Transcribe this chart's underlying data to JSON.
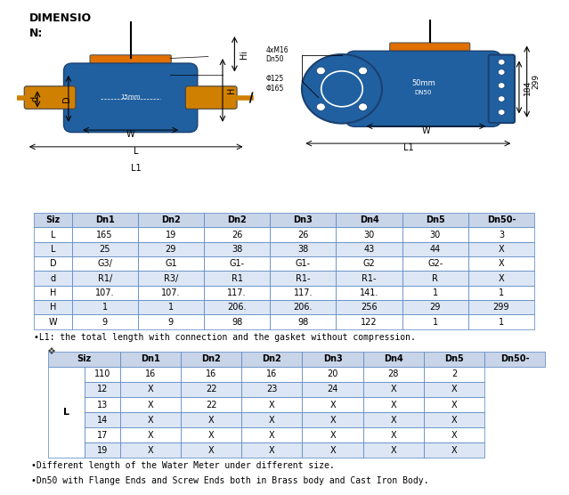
{
  "title_line1": "DIMENSIO",
  "title_line2": "N:",
  "bg_color": "#ffffff",
  "table1_header": [
    "Siz",
    "Dn1",
    "Dn2",
    "Dn2",
    "Dn3",
    "Dn4",
    "Dn5",
    "Dn50-"
  ],
  "table1_rows": [
    [
      "L",
      "165",
      "19",
      "26",
      "26",
      "30",
      "30",
      "3"
    ],
    [
      "L",
      "25",
      "29",
      "38",
      "38",
      "43",
      "44",
      "X"
    ],
    [
      "D",
      "G3/",
      "G1",
      "G1-",
      "G1-",
      "G2",
      "G2-",
      "X"
    ],
    [
      "d",
      "R1/",
      "R3/",
      "R1",
      "R1-",
      "R1-",
      "R",
      "X"
    ],
    [
      "H",
      "107.",
      "107.",
      "117.",
      "117.",
      "141.",
      "1",
      "1"
    ],
    [
      "H",
      "1",
      "1",
      "206.",
      "206.",
      "256",
      "29",
      "299"
    ],
    [
      "W",
      "9",
      "9",
      "98",
      "98",
      "122",
      "1",
      "1"
    ]
  ],
  "table2_header": [
    "Siz",
    "Dn1",
    "Dn2",
    "Dn2",
    "Dn3",
    "Dn4",
    "Dn5",
    "Dn50-"
  ],
  "table2_col1_vals": [
    "110",
    "12",
    "13",
    "14",
    "17",
    "19"
  ],
  "table2_rows": [
    [
      "16",
      "16",
      "16",
      "20",
      "28",
      "2"
    ],
    [
      "X",
      "22",
      "23",
      "24",
      "X",
      "X"
    ],
    [
      "X",
      "22",
      "X",
      "X",
      "X",
      "X"
    ],
    [
      "X",
      "X",
      "X",
      "X",
      "X",
      "X"
    ],
    [
      "X",
      "X",
      "X",
      "X",
      "X",
      "X"
    ],
    [
      "X",
      "X",
      "X",
      "X",
      "X",
      "X"
    ]
  ],
  "note1": "•L1: the total length with connection and the gasket without compression.",
  "note2": "•Different length of the Water Meter under different size.",
  "note3": "•Dn50 with Flange Ends and Screw Ends both in Brass body and Cast Iron Body.",
  "header_color": "#c8d4e8",
  "alt_color": "#dce6f4",
  "white": "#ffffff",
  "border_color": "#5080c0"
}
